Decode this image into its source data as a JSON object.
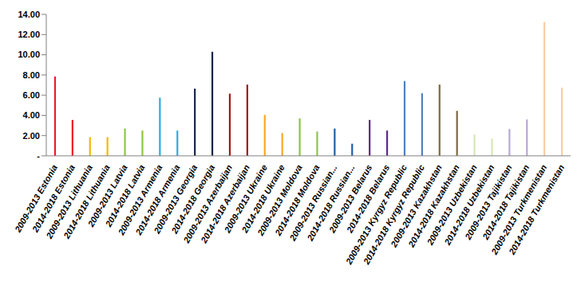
{
  "chart_data": {
    "type": "bar",
    "categories": [
      "2009-2013 Estonia",
      "2014-2018 Estonia",
      "2009-2013 Lithuania",
      "2014-2018 Lithuania",
      "2009-2013 Latvia",
      "2014-2018 Latvia",
      "2009-2013 Armenia",
      "2014-2018 Armenia",
      "2009-2013 Georgia",
      "2014-2018 Georgia",
      "2009-2013 Azerbaijan",
      "2014-2018 Azerbaijan",
      "2009-2013 Ukraine",
      "2014-2018 Ukraine",
      "2009-2013 Moldova",
      "2014-2018 Moldova",
      "2009-2013 Russian...",
      "2014-2018 Russian...",
      "2009-2013 Belarus",
      "2014-2018 Belarus",
      "2009-2013 Kyrgyz Republic",
      "2014-2018 Kyrgyz Republic",
      "2009-2013 Kazakhstan",
      "2014-2018 Kazakhstan",
      "2009-2013 Uzbekistan",
      "2014-2018 Uzbekistan",
      "2009-2013 Tajikistan",
      "2014-2018 Tajikistan",
      "2009-2013 Turkmenistan",
      "2014-2018 Turkmenistan"
    ],
    "values": [
      7.85,
      3.55,
      1.85,
      1.85,
      2.7,
      2.5,
      5.75,
      2.5,
      6.65,
      10.3,
      6.15,
      7.05,
      4.05,
      2.25,
      3.7,
      2.4,
      2.7,
      1.2,
      3.55,
      2.5,
      7.4,
      6.2,
      7.05,
      4.45,
      2.1,
      1.7,
      2.65,
      3.6,
      13.25,
      6.75
    ],
    "colors": [
      "#ee1c25",
      "#ee1c25",
      "#f5b800",
      "#f5b800",
      "#8dc63f",
      "#8dc63f",
      "#29abe2",
      "#29abe2",
      "#14234a",
      "#14234a",
      "#a3161a",
      "#a3161a",
      "#f7a823",
      "#f7a823",
      "#8cc24a",
      "#8cc24a",
      "#1f5fa8",
      "#1f5fa8",
      "#5b2a86",
      "#5b2a86",
      "#4f7fc0",
      "#4f7fc0",
      "#7a6a3a",
      "#7a6a3a",
      "#d6e6b5",
      "#d6e6b5",
      "#b7a9d1",
      "#b7a9d1",
      "#f9cda4",
      "#f9cda4"
    ],
    "ylim": [
      0,
      14
    ],
    "yticks": [
      {
        "value": 0,
        "label": "-"
      },
      {
        "value": 2,
        "label": "2.00"
      },
      {
        "value": 4,
        "label": "4.00"
      },
      {
        "value": 6,
        "label": "6.00"
      },
      {
        "value": 8,
        "label": "8.00"
      },
      {
        "value": 10,
        "label": "10.00"
      },
      {
        "value": 12,
        "label": "12.00"
      },
      {
        "value": 14,
        "label": "14.00"
      }
    ],
    "grid": false
  }
}
